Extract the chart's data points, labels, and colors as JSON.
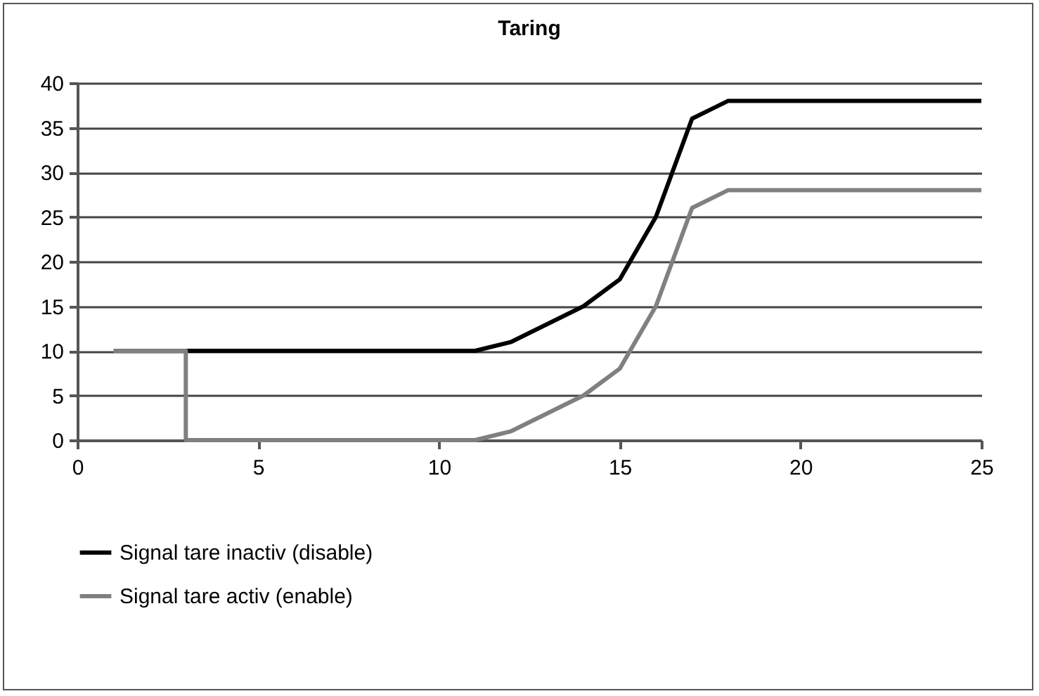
{
  "chart_data": {
    "type": "line",
    "title": "Taring",
    "series": [
      {
        "name": "Signal tare inactiv (disable)",
        "color": "#000000",
        "x": [
          3,
          11,
          12,
          14,
          15,
          16,
          17,
          18,
          25
        ],
        "values": [
          10,
          10,
          11,
          15,
          18,
          25,
          36,
          38,
          38
        ]
      },
      {
        "name": "Signal tare activ (enable)",
        "color": "#808080",
        "x": [
          1,
          3,
          3,
          11,
          12,
          14,
          15,
          16,
          17,
          18,
          25
        ],
        "values": [
          10,
          10,
          0,
          0,
          1,
          5,
          8,
          15,
          26,
          28,
          28
        ]
      }
    ],
    "xlim": [
      0,
      25
    ],
    "xticks": [
      0,
      5,
      10,
      15,
      20,
      25
    ],
    "ylim": [
      0,
      40
    ],
    "yticks": [
      0,
      5,
      10,
      15,
      20,
      25,
      30,
      35,
      40
    ],
    "grid": "y",
    "legend": "bottom",
    "marker": "none",
    "line_style": "solid"
  }
}
